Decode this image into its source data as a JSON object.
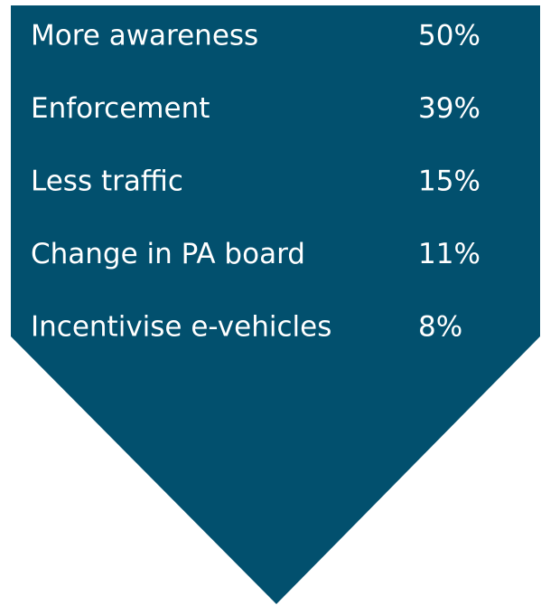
{
  "items": [
    {
      "label": "More awareness",
      "value": "50%"
    },
    {
      "label": "Enforcement",
      "value": "39%"
    },
    {
      "label": "Less traffic",
      "value": "15%"
    },
    {
      "label": "Change in PA board",
      "value": "11%"
    },
    {
      "label": "Incentivise e-vehicles",
      "value": "8%"
    }
  ]
}
